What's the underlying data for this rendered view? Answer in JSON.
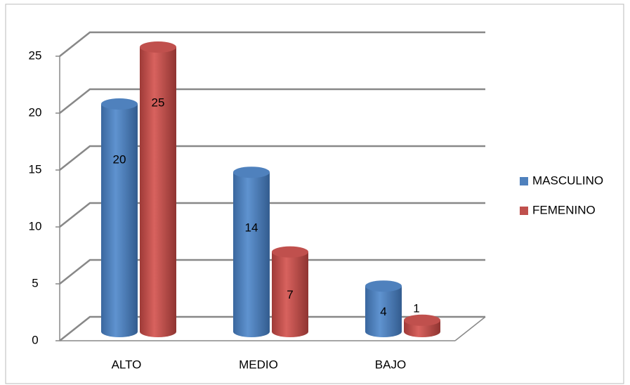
{
  "chart_data": {
    "type": "bar3d",
    "categories": [
      "ALTO",
      "MEDIO",
      "BAJO"
    ],
    "series": [
      {
        "name": "MASCULINO",
        "color": "#4f81bd",
        "values": [
          20,
          14,
          4
        ]
      },
      {
        "name": "FEMENINO",
        "color": "#c0504d",
        "values": [
          25,
          7,
          1
        ]
      }
    ],
    "ylim": [
      0,
      25
    ],
    "yticks": [
      0,
      5,
      10,
      15,
      20,
      25
    ],
    "grid": true,
    "legend": "right"
  }
}
